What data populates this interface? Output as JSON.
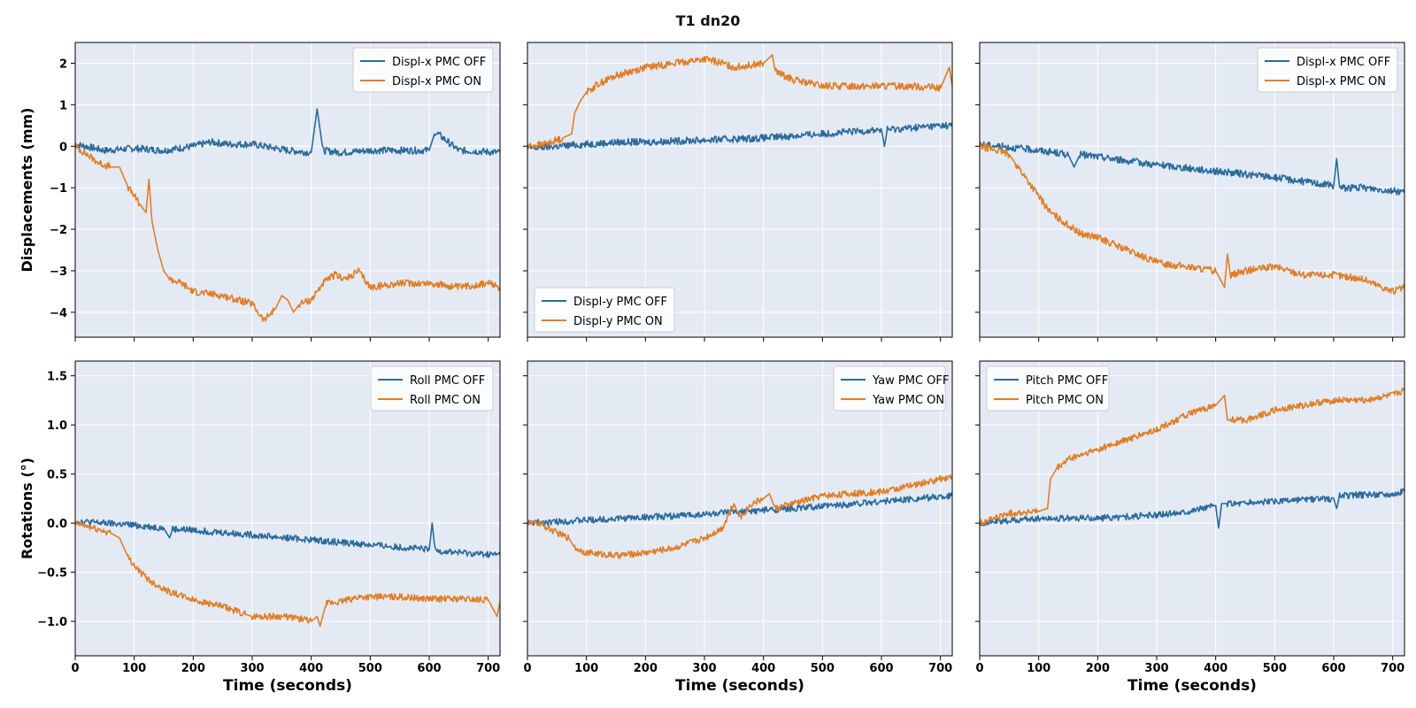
{
  "title": "T1  dn20",
  "colors": {
    "off": "#2a6b9c",
    "on": "#e07e26",
    "panel_bg": "#e4eaf4",
    "grid": "#ffffff"
  },
  "chart_data": [
    {
      "type": "line",
      "panel": "top-left",
      "ylabel": "Displacements (mm)",
      "xlabel": "",
      "xlim": [
        0,
        720
      ],
      "ylim": [
        -4.6,
        2.5
      ],
      "xticks": [
        0,
        100,
        200,
        300,
        400,
        500,
        600,
        700
      ],
      "yticks": [
        -4,
        -3,
        -2,
        -1,
        0,
        1,
        2
      ],
      "legend": "top-right",
      "series": [
        {
          "name": "Displ-x PMC OFF",
          "role": "off",
          "x": [
            0,
            50,
            100,
            150,
            200,
            230,
            260,
            300,
            340,
            360,
            400,
            410,
            420,
            450,
            500,
            550,
            600,
            610,
            650,
            720
          ],
          "y": [
            0.05,
            -0.1,
            -0.05,
            -0.1,
            0.0,
            0.1,
            0.05,
            0.05,
            -0.05,
            -0.1,
            -0.15,
            0.9,
            -0.1,
            -0.15,
            -0.1,
            -0.1,
            -0.1,
            0.35,
            -0.1,
            -0.15
          ]
        },
        {
          "name": "Displ-x PMC ON",
          "role": "on",
          "x": [
            0,
            20,
            40,
            60,
            75,
            90,
            110,
            120,
            125,
            130,
            140,
            150,
            160,
            180,
            200,
            250,
            300,
            320,
            340,
            350,
            360,
            370,
            380,
            400,
            420,
            440,
            460,
            480,
            500,
            550,
            600,
            650,
            700,
            720
          ],
          "y": [
            0.0,
            -0.2,
            -0.4,
            -0.5,
            -0.5,
            -1.0,
            -1.4,
            -1.6,
            -0.8,
            -1.8,
            -2.5,
            -3.0,
            -3.2,
            -3.3,
            -3.5,
            -3.6,
            -3.8,
            -4.2,
            -3.9,
            -3.6,
            -3.7,
            -4.0,
            -3.8,
            -3.7,
            -3.3,
            -3.1,
            -3.2,
            -3.0,
            -3.4,
            -3.3,
            -3.3,
            -3.4,
            -3.3,
            -3.4
          ]
        }
      ]
    },
    {
      "type": "line",
      "panel": "top-middle",
      "xlabel": "",
      "xlim": [
        0,
        720
      ],
      "ylim": [
        -4.6,
        2.5
      ],
      "xticks": [
        0,
        100,
        200,
        300,
        400,
        500,
        600,
        700
      ],
      "yticks": [
        -4,
        -3,
        -2,
        -1,
        0,
        1,
        2
      ],
      "legend": "bottom-left",
      "series": [
        {
          "name": "Displ-y PMC OFF",
          "role": "off",
          "x": [
            0,
            100,
            160,
            200,
            300,
            400,
            500,
            600,
            605,
            610,
            700,
            720
          ],
          "y": [
            -0.05,
            0.05,
            0.1,
            0.1,
            0.15,
            0.2,
            0.3,
            0.4,
            0.0,
            0.4,
            0.5,
            0.5
          ]
        },
        {
          "name": "Displ-y PMC ON",
          "role": "on",
          "x": [
            0,
            30,
            60,
            75,
            80,
            90,
            100,
            120,
            150,
            200,
            250,
            300,
            330,
            350,
            400,
            415,
            420,
            450,
            500,
            550,
            600,
            650,
            700,
            715,
            720
          ],
          "y": [
            0.0,
            0.05,
            0.2,
            0.3,
            0.8,
            1.1,
            1.3,
            1.5,
            1.7,
            1.9,
            2.0,
            2.1,
            2.0,
            1.9,
            2.0,
            2.2,
            1.8,
            1.6,
            1.45,
            1.45,
            1.45,
            1.45,
            1.4,
            1.9,
            1.45
          ]
        }
      ]
    },
    {
      "type": "line",
      "panel": "top-right",
      "xlabel": "",
      "xlim": [
        0,
        720
      ],
      "ylim": [
        -4.6,
        2.5
      ],
      "xticks": [
        0,
        100,
        200,
        300,
        400,
        500,
        600,
        700
      ],
      "yticks": [
        -4,
        -3,
        -2,
        -1,
        0,
        1,
        2
      ],
      "legend": "top-right",
      "series": [
        {
          "name": "Displ-x PMC OFF",
          "role": "off",
          "x": [
            0,
            100,
            150,
            160,
            170,
            200,
            300,
            400,
            500,
            600,
            605,
            610,
            650,
            720
          ],
          "y": [
            0.05,
            -0.1,
            -0.2,
            -0.5,
            -0.2,
            -0.25,
            -0.45,
            -0.6,
            -0.75,
            -0.95,
            -0.3,
            -1.0,
            -1.0,
            -1.1
          ]
        },
        {
          "name": "Displ-x PMC ON",
          "role": "on",
          "x": [
            0,
            30,
            50,
            60,
            80,
            100,
            120,
            150,
            170,
            200,
            250,
            300,
            350,
            400,
            415,
            420,
            425,
            450,
            500,
            550,
            600,
            650,
            700,
            720
          ],
          "y": [
            0.0,
            -0.1,
            -0.2,
            -0.4,
            -0.8,
            -1.2,
            -1.6,
            -1.9,
            -2.1,
            -2.2,
            -2.5,
            -2.8,
            -2.9,
            -3.0,
            -3.4,
            -2.6,
            -3.1,
            -3.0,
            -2.9,
            -3.1,
            -3.1,
            -3.2,
            -3.5,
            -3.4
          ]
        }
      ]
    },
    {
      "type": "line",
      "panel": "bottom-left",
      "ylabel": "Rotations (°)",
      "xlabel": "Time (seconds)",
      "xlim": [
        0,
        720
      ],
      "ylim": [
        -1.35,
        1.65
      ],
      "xticks": [
        0,
        100,
        200,
        300,
        400,
        500,
        600,
        700
      ],
      "yticks": [
        -1.0,
        -0.5,
        0.0,
        0.5,
        1.0,
        1.5
      ],
      "legend": "top-right",
      "series": [
        {
          "name": "Roll PMC OFF",
          "role": "off",
          "x": [
            0,
            100,
            150,
            160,
            165,
            200,
            300,
            400,
            500,
            600,
            605,
            610,
            650,
            700,
            720
          ],
          "y": [
            0.02,
            -0.02,
            -0.05,
            -0.15,
            -0.06,
            -0.07,
            -0.12,
            -0.17,
            -0.22,
            -0.27,
            0.0,
            -0.28,
            -0.3,
            -0.32,
            -0.32
          ]
        },
        {
          "name": "Roll PMC ON",
          "role": "on",
          "x": [
            0,
            30,
            60,
            75,
            90,
            110,
            130,
            160,
            200,
            250,
            290,
            300,
            350,
            380,
            400,
            410,
            415,
            425,
            450,
            480,
            500,
            550,
            600,
            650,
            700,
            715,
            720
          ],
          "y": [
            0.0,
            -0.05,
            -0.1,
            -0.15,
            -0.35,
            -0.5,
            -0.6,
            -0.7,
            -0.78,
            -0.85,
            -0.93,
            -0.95,
            -0.95,
            -0.97,
            -1.0,
            -0.95,
            -1.05,
            -0.82,
            -0.8,
            -0.75,
            -0.75,
            -0.75,
            -0.77,
            -0.77,
            -0.78,
            -0.95,
            -0.8
          ]
        }
      ]
    },
    {
      "type": "line",
      "panel": "bottom-middle",
      "xlabel": "Time (seconds)",
      "xlim": [
        0,
        720
      ],
      "ylim": [
        -1.35,
        1.65
      ],
      "xticks": [
        0,
        100,
        200,
        300,
        400,
        500,
        600,
        700
      ],
      "yticks": [
        -1.0,
        -0.5,
        0.0,
        0.5,
        1.0,
        1.5
      ],
      "legend": "top-right",
      "series": [
        {
          "name": "Yaw PMC OFF",
          "role": "off",
          "x": [
            0,
            100,
            200,
            300,
            400,
            500,
            600,
            700,
            720
          ],
          "y": [
            0.0,
            0.03,
            0.06,
            0.09,
            0.13,
            0.17,
            0.22,
            0.27,
            0.28
          ]
        },
        {
          "name": "Yaw PMC ON",
          "role": "on",
          "x": [
            0,
            20,
            50,
            70,
            80,
            100,
            150,
            200,
            250,
            300,
            330,
            350,
            360,
            380,
            400,
            410,
            420,
            450,
            500,
            550,
            600,
            650,
            700,
            720
          ],
          "y": [
            0.0,
            0.0,
            -0.1,
            -0.15,
            -0.25,
            -0.3,
            -0.33,
            -0.3,
            -0.25,
            -0.15,
            -0.05,
            0.2,
            0.05,
            0.2,
            0.25,
            0.3,
            0.15,
            0.2,
            0.28,
            0.3,
            0.32,
            0.38,
            0.45,
            0.48
          ]
        }
      ]
    },
    {
      "type": "line",
      "panel": "bottom-right",
      "xlabel": "Time (seconds)",
      "xlim": [
        0,
        720
      ],
      "ylim": [
        -1.35,
        1.65
      ],
      "xticks": [
        0,
        100,
        200,
        300,
        400,
        500,
        600,
        700
      ],
      "yticks": [
        -1.0,
        -0.5,
        0.0,
        0.5,
        1.0,
        1.5
      ],
      "legend": "top-left",
      "series": [
        {
          "name": "Pitch PMC OFF",
          "role": "off",
          "x": [
            0,
            100,
            150,
            200,
            300,
            350,
            400,
            405,
            410,
            420,
            500,
            600,
            605,
            610,
            700,
            720
          ],
          "y": [
            0.0,
            0.05,
            0.05,
            0.05,
            0.08,
            0.12,
            0.18,
            -0.05,
            0.2,
            0.2,
            0.22,
            0.25,
            0.15,
            0.28,
            0.3,
            0.32
          ]
        },
        {
          "name": "Pitch PMC ON",
          "role": "on",
          "x": [
            0,
            50,
            100,
            115,
            120,
            130,
            150,
            200,
            250,
            300,
            350,
            400,
            415,
            420,
            425,
            450,
            500,
            550,
            600,
            650,
            700,
            720
          ],
          "y": [
            0.0,
            0.1,
            0.12,
            0.15,
            0.45,
            0.55,
            0.65,
            0.75,
            0.85,
            0.95,
            1.1,
            1.2,
            1.3,
            1.05,
            1.05,
            1.05,
            1.15,
            1.2,
            1.25,
            1.25,
            1.3,
            1.35
          ]
        }
      ]
    }
  ]
}
